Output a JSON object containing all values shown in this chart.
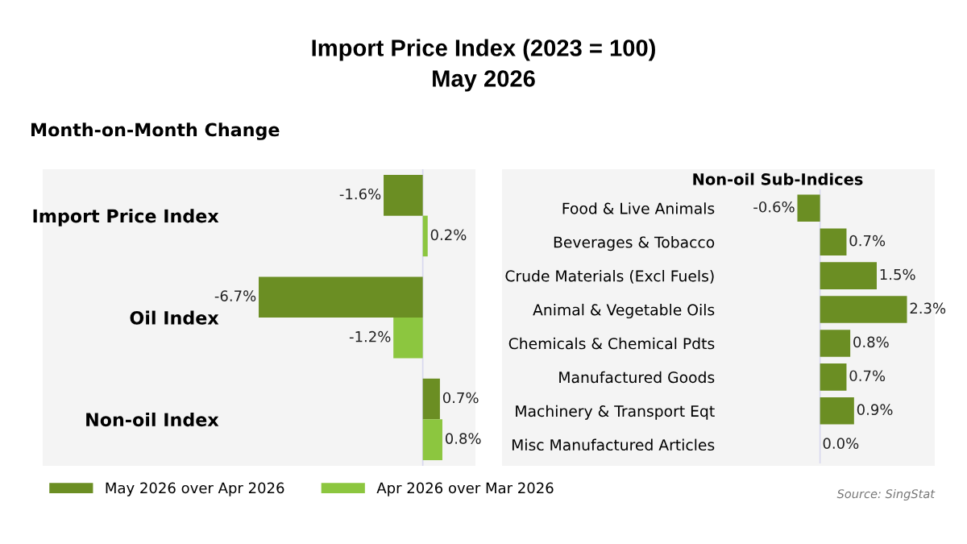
{
  "chart_data": [
    {
      "type": "bar",
      "orientation": "horizontal",
      "title": "Import Price Index (2023 = 100)",
      "subtitle": "May 2026",
      "annotations": [
        "Month-on-Month Change"
      ],
      "categories": [
        "Import Price Index",
        "Oil Index",
        "Non-oil Index"
      ],
      "series": [
        {
          "name": "May 2026 over Apr 2026",
          "color": "#6b8e23",
          "values": [
            -1.6,
            -6.7,
            0.7
          ],
          "value_labels": [
            "-1.6%",
            "-6.7%",
            "0.7%"
          ]
        },
        {
          "name": "Apr 2026 over Mar 2026",
          "color": "#8cc63f",
          "values": [
            0.2,
            -1.2,
            0.8
          ],
          "value_labels": [
            "0.2%",
            "-1.2%",
            "0.8%"
          ]
        }
      ],
      "ref_lines": [
        {
          "axis": "x",
          "value": 0,
          "color": "#d8d8ee"
        }
      ],
      "legend": "bottom",
      "tick_labels": "y"
    },
    {
      "type": "bar",
      "orientation": "horizontal",
      "title": "Non-oil Sub-Indices",
      "annotations": [
        "Source: SingStat"
      ],
      "categories": [
        "Food & Live Animals",
        "Beverages & Tobacco",
        "Crude Materials (Excl Fuels)",
        "Animal & Vegetable Oils",
        "Chemicals & Chemical Pdts",
        "Manufactured Goods",
        "Machinery & Transport Eqt",
        "Misc Manufactured Articles"
      ],
      "series": [
        {
          "color": "#6b8e23",
          "values": [
            -0.6,
            0.7,
            1.5,
            2.3,
            0.8,
            0.7,
            0.9,
            0.0
          ],
          "value_labels": [
            "-0.6%",
            "0.7%",
            "1.5%",
            "2.3%",
            "0.8%",
            "0.7%",
            "0.9%",
            "0.0%"
          ]
        }
      ],
      "ref_lines": [
        {
          "axis": "x",
          "value": 0,
          "color": "#d8d8ee"
        }
      ],
      "tick_labels": "y"
    }
  ]
}
